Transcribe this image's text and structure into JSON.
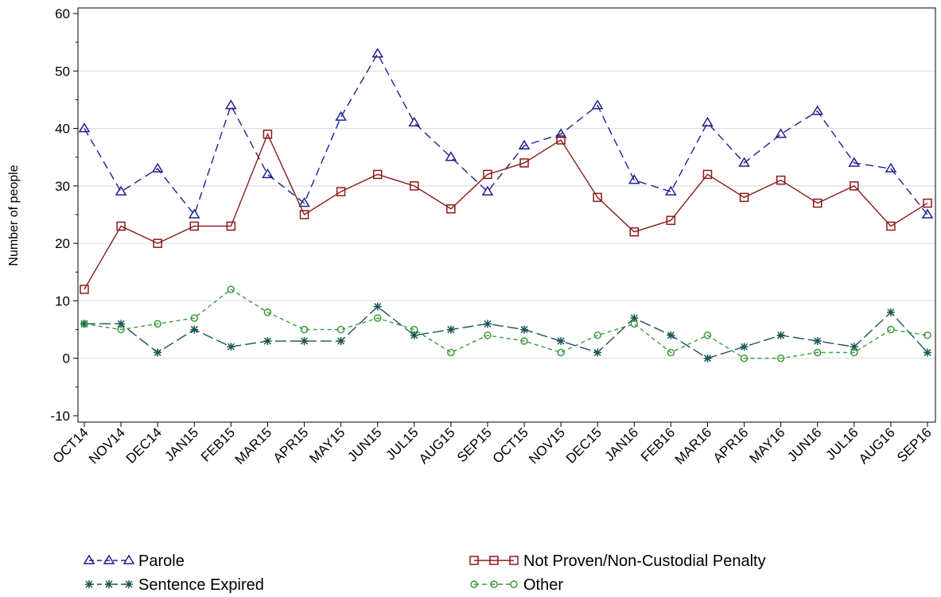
{
  "chart_data": {
    "type": "line",
    "title": "",
    "xlabel": "",
    "ylabel": "Number of people",
    "ylim": [
      -10,
      60
    ],
    "yticks": [
      -10,
      0,
      10,
      20,
      30,
      40,
      50,
      60
    ],
    "grid": "horizontal",
    "legend_position": "bottom",
    "categories": [
      "OCT14",
      "NOV14",
      "DEC14",
      "JAN15",
      "FEB15",
      "MAR15",
      "APR15",
      "MAY15",
      "JUN15",
      "JUL15",
      "AUG15",
      "SEP15",
      "OCT15",
      "NOV15",
      "DEC15",
      "JAN16",
      "FEB16",
      "MAR16",
      "APR16",
      "MAY16",
      "JUN16",
      "JUL16",
      "AUG16",
      "SEP16"
    ],
    "series": [
      {
        "name": "Parole",
        "color": "#1f1f8f",
        "dash": "dashed",
        "marker": "triangle",
        "values": [
          40,
          29,
          33,
          25,
          44,
          32,
          27,
          42,
          53,
          41,
          35,
          29,
          37,
          39,
          44,
          31,
          29,
          41,
          34,
          39,
          43,
          34,
          33,
          25
        ]
      },
      {
        "name": "Not Proven/Non-Custodial Penalty",
        "color": "#8b1a1a",
        "dash": "solid",
        "marker": "square",
        "values": [
          12,
          23,
          20,
          23,
          23,
          39,
          25,
          29,
          32,
          30,
          26,
          32,
          34,
          38,
          28,
          22,
          24,
          32,
          28,
          31,
          27,
          30,
          23,
          27
        ]
      },
      {
        "name": "Sentence Expired",
        "color": "#1a5555",
        "dash": "long-dash",
        "marker": "star",
        "values": [
          6,
          6,
          1,
          5,
          2,
          3,
          3,
          3,
          9,
          4,
          5,
          6,
          5,
          3,
          1,
          7,
          4,
          0,
          2,
          4,
          3,
          2,
          8,
          1
        ]
      },
      {
        "name": "Other",
        "color": "#3a9a3a",
        "dash": "short-dash",
        "marker": "circle",
        "values": [
          6,
          5,
          6,
          7,
          12,
          8,
          5,
          5,
          7,
          5,
          1,
          4,
          3,
          1,
          4,
          6,
          1,
          4,
          0,
          0,
          1,
          1,
          5,
          4
        ]
      }
    ]
  }
}
